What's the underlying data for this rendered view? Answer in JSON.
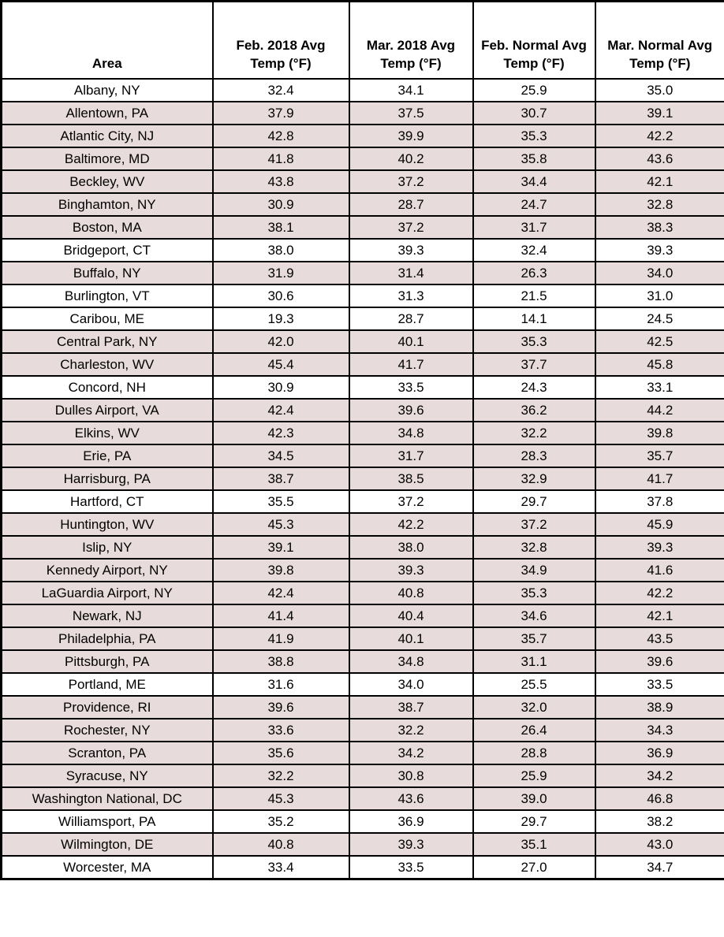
{
  "colors": {
    "highlight_row": "#e8dbdb",
    "border": "#000000",
    "text": "#000000",
    "background": "#ffffff"
  },
  "chart_data": {
    "type": "table",
    "title": "",
    "columns": [
      "Area",
      "Feb. 2018 Avg Temp (°F)",
      "Mar. 2018 Avg Temp (°F)",
      "Feb. Normal Avg Temp (°F)",
      "Mar. Normal Avg Temp (°F)"
    ],
    "highlight_meaning": "rows shaded pink have Feb. 2018 avg temp warmer than Mar. 2018 avg temp",
    "rows": [
      {
        "area": "Albany, NY",
        "feb_2018": "32.4",
        "mar_2018": "34.1",
        "feb_normal": "25.9",
        "mar_normal": "35.0",
        "highlighted": false
      },
      {
        "area": "Allentown, PA",
        "feb_2018": "37.9",
        "mar_2018": "37.5",
        "feb_normal": "30.7",
        "mar_normal": "39.1",
        "highlighted": true
      },
      {
        "area": "Atlantic City, NJ",
        "feb_2018": "42.8",
        "mar_2018": "39.9",
        "feb_normal": "35.3",
        "mar_normal": "42.2",
        "highlighted": true
      },
      {
        "area": "Baltimore, MD",
        "feb_2018": "41.8",
        "mar_2018": "40.2",
        "feb_normal": "35.8",
        "mar_normal": "43.6",
        "highlighted": true
      },
      {
        "area": "Beckley, WV",
        "feb_2018": "43.8",
        "mar_2018": "37.2",
        "feb_normal": "34.4",
        "mar_normal": "42.1",
        "highlighted": true
      },
      {
        "area": "Binghamton, NY",
        "feb_2018": "30.9",
        "mar_2018": "28.7",
        "feb_normal": "24.7",
        "mar_normal": "32.8",
        "highlighted": true
      },
      {
        "area": "Boston, MA",
        "feb_2018": "38.1",
        "mar_2018": "37.2",
        "feb_normal": "31.7",
        "mar_normal": "38.3",
        "highlighted": true
      },
      {
        "area": "Bridgeport, CT",
        "feb_2018": "38.0",
        "mar_2018": "39.3",
        "feb_normal": "32.4",
        "mar_normal": "39.3",
        "highlighted": false
      },
      {
        "area": "Buffalo, NY",
        "feb_2018": "31.9",
        "mar_2018": "31.4",
        "feb_normal": "26.3",
        "mar_normal": "34.0",
        "highlighted": true
      },
      {
        "area": "Burlington, VT",
        "feb_2018": "30.6",
        "mar_2018": "31.3",
        "feb_normal": "21.5",
        "mar_normal": "31.0",
        "highlighted": false
      },
      {
        "area": "Caribou, ME",
        "feb_2018": "19.3",
        "mar_2018": "28.7",
        "feb_normal": "14.1",
        "mar_normal": "24.5",
        "highlighted": false
      },
      {
        "area": "Central Park, NY",
        "feb_2018": "42.0",
        "mar_2018": "40.1",
        "feb_normal": "35.3",
        "mar_normal": "42.5",
        "highlighted": true
      },
      {
        "area": "Charleston, WV",
        "feb_2018": "45.4",
        "mar_2018": "41.7",
        "feb_normal": "37.7",
        "mar_normal": "45.8",
        "highlighted": true
      },
      {
        "area": "Concord, NH",
        "feb_2018": "30.9",
        "mar_2018": "33.5",
        "feb_normal": "24.3",
        "mar_normal": "33.1",
        "highlighted": false
      },
      {
        "area": "Dulles Airport, VA",
        "feb_2018": "42.4",
        "mar_2018": "39.6",
        "feb_normal": "36.2",
        "mar_normal": "44.2",
        "highlighted": true
      },
      {
        "area": "Elkins, WV",
        "feb_2018": "42.3",
        "mar_2018": "34.8",
        "feb_normal": "32.2",
        "mar_normal": "39.8",
        "highlighted": true
      },
      {
        "area": "Erie, PA",
        "feb_2018": "34.5",
        "mar_2018": "31.7",
        "feb_normal": "28.3",
        "mar_normal": "35.7",
        "highlighted": true
      },
      {
        "area": "Harrisburg, PA",
        "feb_2018": "38.7",
        "mar_2018": "38.5",
        "feb_normal": "32.9",
        "mar_normal": "41.7",
        "highlighted": true
      },
      {
        "area": "Hartford, CT",
        "feb_2018": "35.5",
        "mar_2018": "37.2",
        "feb_normal": "29.7",
        "mar_normal": "37.8",
        "highlighted": false
      },
      {
        "area": "Huntington, WV",
        "feb_2018": "45.3",
        "mar_2018": "42.2",
        "feb_normal": "37.2",
        "mar_normal": "45.9",
        "highlighted": true
      },
      {
        "area": "Islip, NY",
        "feb_2018": "39.1",
        "mar_2018": "38.0",
        "feb_normal": "32.8",
        "mar_normal": "39.3",
        "highlighted": true
      },
      {
        "area": "Kennedy Airport, NY",
        "feb_2018": "39.8",
        "mar_2018": "39.3",
        "feb_normal": "34.9",
        "mar_normal": "41.6",
        "highlighted": true
      },
      {
        "area": "LaGuardia Airport, NY",
        "feb_2018": "42.4",
        "mar_2018": "40.8",
        "feb_normal": "35.3",
        "mar_normal": "42.2",
        "highlighted": true
      },
      {
        "area": "Newark, NJ",
        "feb_2018": "41.4",
        "mar_2018": "40.4",
        "feb_normal": "34.6",
        "mar_normal": "42.1",
        "highlighted": true
      },
      {
        "area": "Philadelphia, PA",
        "feb_2018": "41.9",
        "mar_2018": "40.1",
        "feb_normal": "35.7",
        "mar_normal": "43.5",
        "highlighted": true
      },
      {
        "area": "Pittsburgh, PA",
        "feb_2018": "38.8",
        "mar_2018": "34.8",
        "feb_normal": "31.1",
        "mar_normal": "39.6",
        "highlighted": true
      },
      {
        "area": "Portland, ME",
        "feb_2018": "31.6",
        "mar_2018": "34.0",
        "feb_normal": "25.5",
        "mar_normal": "33.5",
        "highlighted": false
      },
      {
        "area": "Providence, RI",
        "feb_2018": "39.6",
        "mar_2018": "38.7",
        "feb_normal": "32.0",
        "mar_normal": "38.9",
        "highlighted": true
      },
      {
        "area": "Rochester, NY",
        "feb_2018": "33.6",
        "mar_2018": "32.2",
        "feb_normal": "26.4",
        "mar_normal": "34.3",
        "highlighted": true
      },
      {
        "area": "Scranton, PA",
        "feb_2018": "35.6",
        "mar_2018": "34.2",
        "feb_normal": "28.8",
        "mar_normal": "36.9",
        "highlighted": true
      },
      {
        "area": "Syracuse, NY",
        "feb_2018": "32.2",
        "mar_2018": "30.8",
        "feb_normal": "25.9",
        "mar_normal": "34.2",
        "highlighted": true
      },
      {
        "area": "Washington National, DC",
        "feb_2018": "45.3",
        "mar_2018": "43.6",
        "feb_normal": "39.0",
        "mar_normal": "46.8",
        "highlighted": true
      },
      {
        "area": "Williamsport, PA",
        "feb_2018": "35.2",
        "mar_2018": "36.9",
        "feb_normal": "29.7",
        "mar_normal": "38.2",
        "highlighted": false
      },
      {
        "area": "Wilmington, DE",
        "feb_2018": "40.8",
        "mar_2018": "39.3",
        "feb_normal": "35.1",
        "mar_normal": "43.0",
        "highlighted": true
      },
      {
        "area": "Worcester, MA",
        "feb_2018": "33.4",
        "mar_2018": "33.5",
        "feb_normal": "27.0",
        "mar_normal": "34.7",
        "highlighted": false
      }
    ]
  }
}
